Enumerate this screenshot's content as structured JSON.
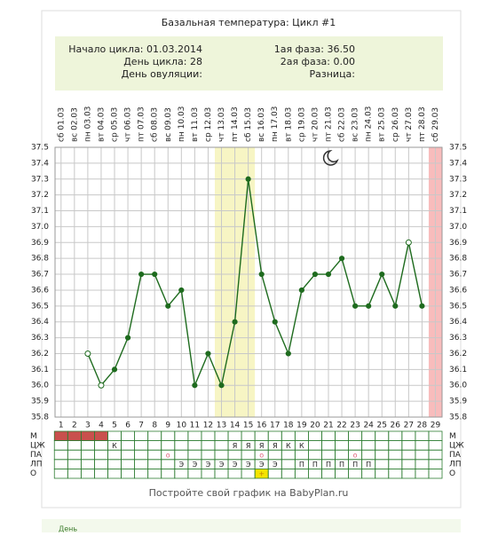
{
  "chart_data": {
    "type": "line",
    "title": "Базальная температура: Цикл #1",
    "info_left": [
      "Начало цикла: 01.03.2014",
      "День цикла: 28",
      "День овуляции:"
    ],
    "info_right": [
      "1ая фаза: 36.50",
      "2ая фаза: 0.00",
      "Разница:"
    ],
    "x": [
      1,
      2,
      3,
      4,
      5,
      6,
      7,
      8,
      9,
      10,
      11,
      12,
      13,
      14,
      15,
      16,
      17,
      18,
      19,
      20,
      21,
      22,
      23,
      24,
      25,
      26,
      27,
      28,
      29
    ],
    "header_labels": [
      "сб 01.03",
      "вс 02.03",
      "пн 03.03",
      "вт 04.03",
      "ср 05.03",
      "чт 06.03",
      "пт 07.03",
      "сб 08.03",
      "вс 09.03",
      "пн 10.03",
      "вт 11.03",
      "ср 12.03",
      "чт 13.03",
      "пт 14.03",
      "сб 15.03",
      "вс 16.03",
      "пн 17.03",
      "вт 18.03",
      "ср 19.03",
      "чт 20.03",
      "пт 21.03",
      "сб 22.03",
      "вс 23.03",
      "пн 24.03",
      "вт 25.03",
      "ср 26.03",
      "чт 27.03",
      "пт 28.03",
      "сб 29.03"
    ],
    "values": [
      null,
      null,
      36.2,
      36.0,
      36.1,
      36.3,
      36.7,
      36.7,
      36.5,
      36.6,
      36.0,
      36.2,
      36.0,
      36.4,
      37.3,
      36.7,
      36.4,
      36.2,
      36.6,
      36.7,
      36.7,
      36.8,
      36.5,
      36.5,
      36.7,
      36.5,
      36.9,
      36.5,
      null
    ],
    "marker_styles": [
      null,
      null,
      "open",
      "open",
      "filled",
      "filled",
      "filled",
      "filled",
      "filled",
      "filled",
      "filled",
      "filled",
      "filled",
      "filled",
      "filled",
      "filled",
      "filled",
      "filled",
      "filled",
      "filled",
      "filled",
      "filled",
      "filled",
      "filled",
      "filled",
      "filled",
      "open",
      "filled",
      null
    ],
    "color": "#1e6b1e",
    "xlim": [
      0.55,
      29.5
    ],
    "ylim": [
      35.8,
      37.5
    ],
    "yticks": [
      35.8,
      35.9,
      {
        "value": 36.0,
        "label": "36.0"
      },
      36.1,
      36.2,
      36.3,
      36.4,
      36.5,
      36.6,
      36.7,
      36.8,
      36.9,
      {
        "value": 37.0,
        "label": "37.0"
      },
      37.1,
      37.2,
      37.3,
      37.4,
      37.5
    ],
    "grid": true,
    "highlight_bands": [
      {
        "from": 13,
        "to": 15,
        "color": "#f7f5c4"
      },
      {
        "from": 29,
        "to": 29,
        "color": "#f8bcbc"
      }
    ],
    "table_rows": [
      {
        "label": "М",
        "cells": [
          null,
          null,
          null,
          null,
          null,
          null,
          null,
          null,
          null,
          null,
          null,
          null,
          null,
          null,
          null,
          null,
          null,
          null,
          null,
          null,
          null,
          null,
          null,
          null,
          null,
          null,
          null,
          null,
          null
        ],
        "highlight": {
          "from": 1,
          "to": 4,
          "color": "#c9504d"
        },
        "text_color": "#222"
      },
      {
        "label": "ЦЖ",
        "cells": [
          null,
          null,
          null,
          null,
          "К",
          null,
          null,
          null,
          null,
          null,
          null,
          null,
          null,
          "Я",
          "Я",
          "Я",
          "Я",
          "К",
          "К",
          null,
          null,
          null,
          null,
          null,
          null,
          null,
          null,
          null,
          null
        ],
        "text_color": "#222"
      },
      {
        "label": "ПА",
        "cells": [
          null,
          null,
          null,
          null,
          null,
          null,
          null,
          null,
          "o",
          null,
          null,
          null,
          null,
          null,
          null,
          "o",
          null,
          null,
          null,
          null,
          null,
          null,
          "o",
          null,
          null,
          null,
          null,
          null,
          null
        ],
        "text_color": "#e0607a"
      },
      {
        "label": "ЛП",
        "cells": [
          null,
          null,
          null,
          null,
          null,
          null,
          null,
          null,
          null,
          "Э",
          "Э",
          "Э",
          "Э",
          "Э",
          "Э",
          "Э",
          "Э",
          null,
          "П",
          "П",
          "П",
          "П",
          "П",
          "П",
          null,
          null,
          null,
          null,
          null
        ],
        "text_color": "#222"
      },
      {
        "label": "О",
        "cells": [
          null,
          null,
          null,
          null,
          null,
          null,
          null,
          null,
          null,
          null,
          null,
          null,
          null,
          null,
          null,
          "+",
          null,
          null,
          null,
          null,
          null,
          null,
          null,
          null,
          null,
          null,
          null,
          null,
          null
        ],
        "highlight": {
          "from": 16,
          "to": 16,
          "color": "#f5e400"
        },
        "text_color": "#c08000"
      }
    ],
    "footer": "Постройте свой график на BabyPlan.ru",
    "below_text": "День"
  }
}
